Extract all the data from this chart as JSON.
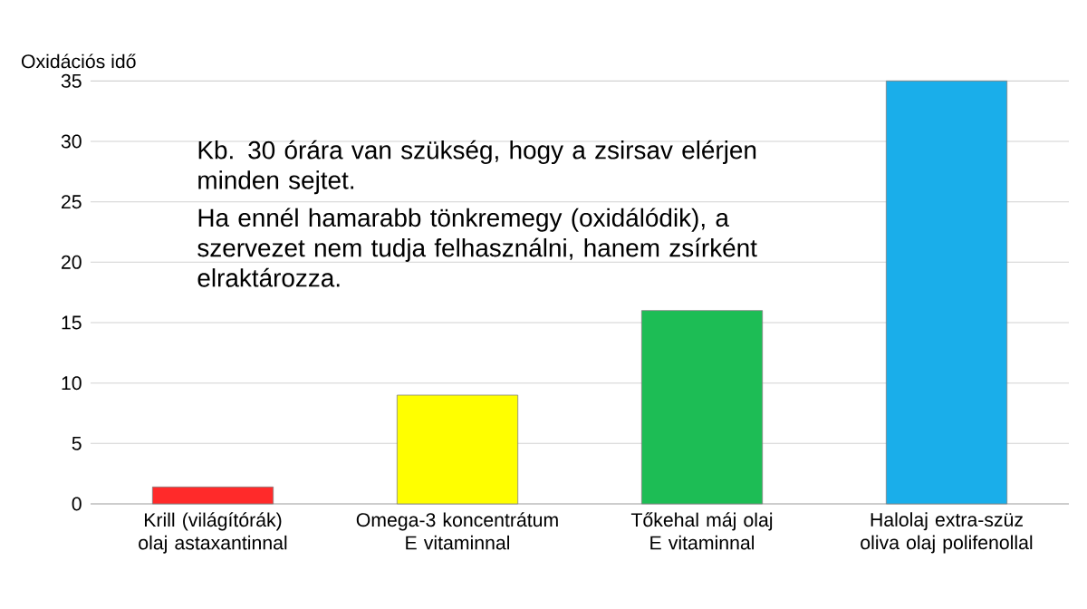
{
  "chart_data": {
    "type": "bar",
    "ylabel": "Oxidációs idő",
    "categories": [
      "Krill (világítórák) olaj astaxantinnal",
      "Omega-3 koncentrátum E vitaminnal",
      "Tőkehal máj olaj E vitaminnal",
      "Halolaj extra-szüz oliva olaj polifenollal"
    ],
    "values": [
      1.4,
      9,
      16,
      35
    ],
    "colors": [
      "#ff2a2a",
      "#ffff00",
      "#1dbd55",
      "#1aaeea"
    ],
    "ylim": [
      0,
      35
    ],
    "yticks": [
      0,
      5,
      10,
      15,
      20,
      25,
      30,
      35
    ],
    "grid": "y",
    "annotations": [
      "Kb. 30 órára van szükség, hogy a zsirsav elérjen minden sejtet.",
      "Ha ennél hamarabb tönkremegy (oxidálódik), a szervezet nem tudja felhasználni, hanem zsírként elraktározza."
    ]
  }
}
